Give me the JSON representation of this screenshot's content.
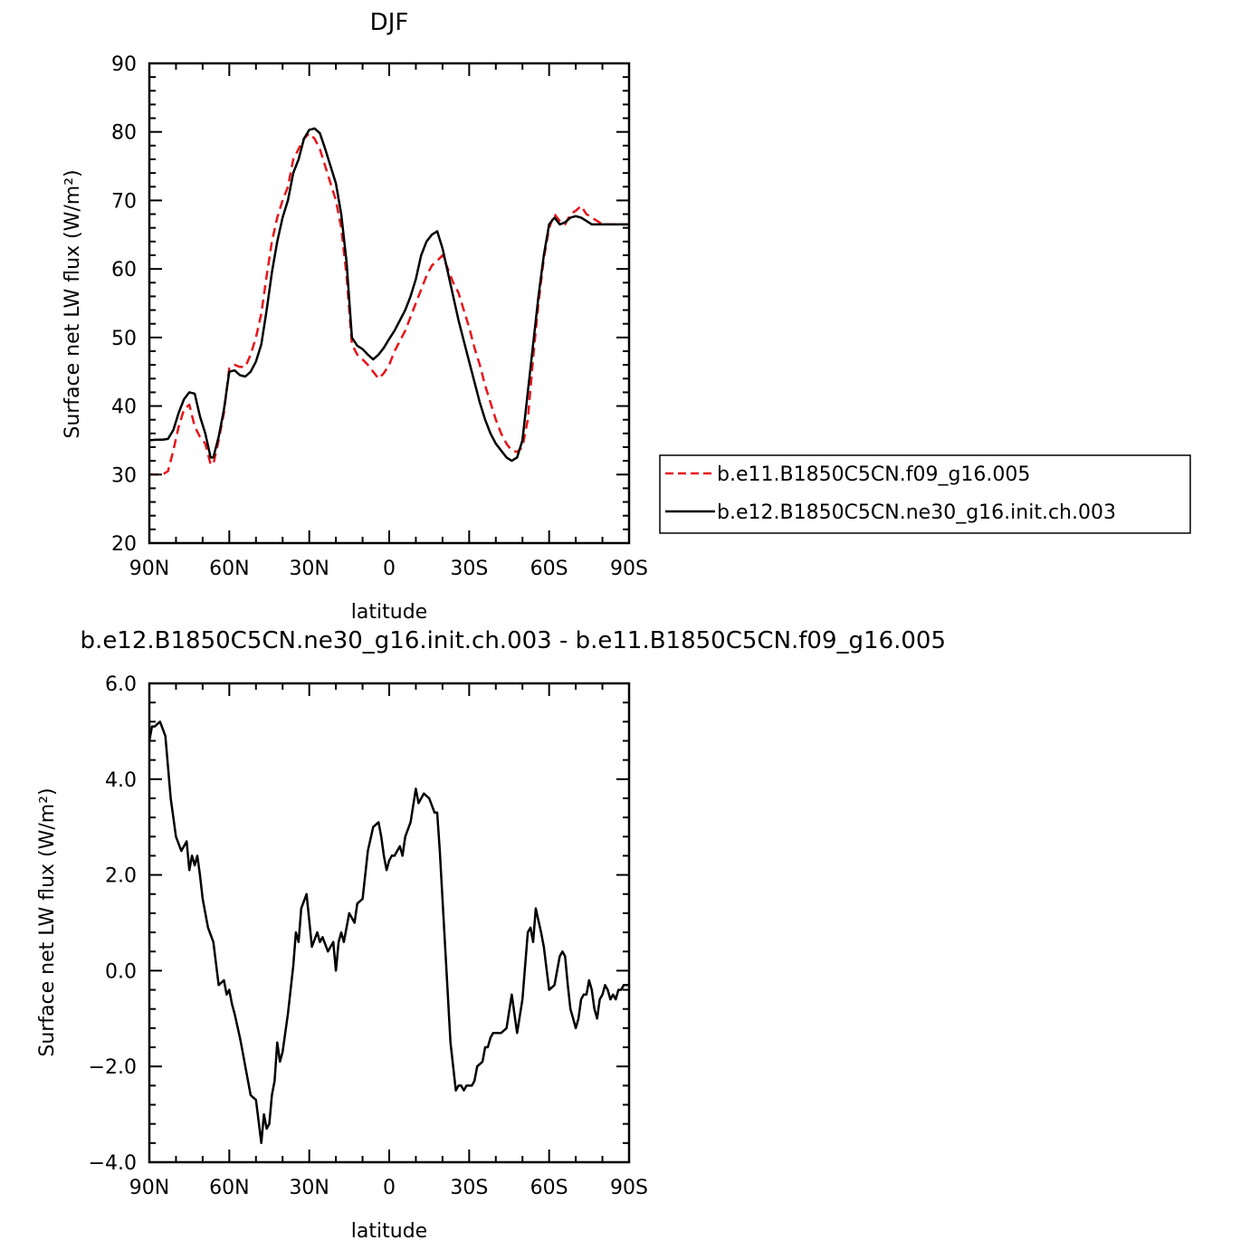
{
  "chart_data": [
    {
      "type": "line",
      "title": "DJF",
      "xlabel": "latitude",
      "ylabel": "Surface net LW flux (W/m²)",
      "xlim": [
        90,
        -90
      ],
      "ylim": [
        20,
        90
      ],
      "xticks": [
        90,
        60,
        30,
        0,
        -30,
        -60,
        -90
      ],
      "xtick_labels": [
        "90N",
        "60N",
        "30N",
        "0",
        "30S",
        "60S",
        "90S"
      ],
      "yticks": [
        20,
        30,
        40,
        50,
        60,
        70,
        80,
        90
      ],
      "ytick_labels": [
        "20",
        "30",
        "40",
        "50",
        "60",
        "70",
        "80",
        "90"
      ],
      "legend": "right",
      "series": [
        {
          "name": "b.e11.B1850C5CN.f09_g16.005",
          "color": "#e8141a",
          "dash": "dashed",
          "x": [
            90,
            87,
            85,
            83,
            81,
            79,
            77,
            75,
            73,
            71,
            69,
            67,
            66,
            64,
            62,
            60,
            58,
            56,
            54,
            52,
            50,
            48,
            46,
            44,
            42,
            40,
            38,
            36,
            34,
            32,
            30,
            28,
            26,
            24,
            22,
            20,
            18,
            16,
            14,
            12,
            10,
            8,
            6,
            4,
            2,
            0,
            -2,
            -4,
            -6,
            -8,
            -10,
            -12,
            -14,
            -16,
            -18,
            -20,
            -22,
            -24,
            -26,
            -28,
            -30,
            -32,
            -34,
            -36,
            -38,
            -40,
            -42,
            -44,
            -46,
            -48,
            -50,
            -52,
            -54,
            -56,
            -58,
            -60,
            -62,
            -64,
            -66,
            -68,
            -70,
            -72,
            -74,
            -76,
            -78,
            -80,
            -82,
            -84,
            -86,
            -88,
            -90
          ],
          "y": [
            30.0,
            30.0,
            30.0,
            30.5,
            33.5,
            37.0,
            39.5,
            40.2,
            37.0,
            35.5,
            34.5,
            31.5,
            31.5,
            35.0,
            39.0,
            45.5,
            46.0,
            45.7,
            45.7,
            47.5,
            50.0,
            53.5,
            59.0,
            64.0,
            67.5,
            70.0,
            72.0,
            76.0,
            77.5,
            79.0,
            79.8,
            79.0,
            77.5,
            75.0,
            72.5,
            70.0,
            66.0,
            59.0,
            49.0,
            47.5,
            46.8,
            46.0,
            45.0,
            44.0,
            44.8,
            46.0,
            48.0,
            49.5,
            51.0,
            53.0,
            55.0,
            57.0,
            59.0,
            60.5,
            61.2,
            62.0,
            60.0,
            58.0,
            56.5,
            54.0,
            51.5,
            48.5,
            46.0,
            43.0,
            40.5,
            38.0,
            36.0,
            34.5,
            33.5,
            33.3,
            34.0,
            38.0,
            47.0,
            55.0,
            61.5,
            66.0,
            68.0,
            67.0,
            66.5,
            68.0,
            68.5,
            69.2,
            68.0,
            67.5,
            67.0,
            66.5,
            66.5,
            66.5,
            66.5,
            66.5,
            66.5
          ]
        },
        {
          "name": "b.e12.B1850C5CN.ne30_g16.init.ch.003",
          "color": "#000000",
          "dash": "solid",
          "x": [
            90,
            87,
            85,
            83,
            81,
            79,
            77,
            75,
            73,
            71,
            69,
            67,
            66,
            64,
            62,
            60,
            58,
            56,
            54,
            52,
            50,
            48,
            46,
            44,
            42,
            40,
            38,
            36,
            34,
            32,
            30,
            28,
            26,
            24,
            22,
            20,
            18,
            16,
            14,
            12,
            10,
            8,
            6,
            4,
            2,
            0,
            -2,
            -4,
            -6,
            -8,
            -10,
            -12,
            -14,
            -16,
            -18,
            -20,
            -22,
            -24,
            -26,
            -28,
            -30,
            -32,
            -34,
            -36,
            -38,
            -40,
            -42,
            -44,
            -46,
            -48,
            -50,
            -52,
            -54,
            -56,
            -58,
            -60,
            -62,
            -64,
            -66,
            -68,
            -70,
            -72,
            -74,
            -76,
            -78,
            -80,
            -82,
            -84,
            -86,
            -88,
            -90
          ],
          "y": [
            35.0,
            35.1,
            35.1,
            35.2,
            36.5,
            39.0,
            41.0,
            42.0,
            41.8,
            38.5,
            36.0,
            32.5,
            32.5,
            35.5,
            39.5,
            45.0,
            45.2,
            44.5,
            44.3,
            45.0,
            46.5,
            49.0,
            54.0,
            59.5,
            64.0,
            67.5,
            70.0,
            74.0,
            76.0,
            79.0,
            80.3,
            80.5,
            79.8,
            77.5,
            75.0,
            72.5,
            68.0,
            61.0,
            50.0,
            48.8,
            48.3,
            47.5,
            46.8,
            47.5,
            48.5,
            49.8,
            51.0,
            52.5,
            54.0,
            56.0,
            58.5,
            62.0,
            64.0,
            65.0,
            65.5,
            63.0,
            59.5,
            56.0,
            52.5,
            49.5,
            46.5,
            43.5,
            40.5,
            38.0,
            36.0,
            34.5,
            33.5,
            32.5,
            32.0,
            32.5,
            35.0,
            42.0,
            49.0,
            56.0,
            62.0,
            66.5,
            67.5,
            66.5,
            66.8,
            67.5,
            67.7,
            67.5,
            67.0,
            66.5,
            66.5,
            66.5,
            66.5,
            66.5,
            66.5,
            66.5,
            66.5
          ]
        }
      ]
    },
    {
      "type": "line",
      "title": "b.e12.B1850C5CN.ne30_g16.init.ch.003 - b.e11.B1850C5CN.f09_g16.005",
      "xlabel": "latitude",
      "ylabel": "Surface net LW flux (W/m²)",
      "xlim": [
        90,
        -90
      ],
      "ylim": [
        -4.0,
        6.0
      ],
      "xticks": [
        90,
        60,
        30,
        0,
        -30,
        -60,
        -90
      ],
      "xtick_labels": [
        "90N",
        "60N",
        "30N",
        "0",
        "30S",
        "60S",
        "90S"
      ],
      "yticks": [
        -4,
        -2,
        0,
        2,
        4,
        6
      ],
      "ytick_labels": [
        "−4.0",
        "−2.0",
        "0.0",
        "2.0",
        "4.0",
        "6.0"
      ],
      "series": [
        {
          "color": "#000000",
          "dash": "solid",
          "x": [
            90,
            89,
            88,
            86,
            84,
            82,
            80,
            78,
            76,
            75,
            74,
            73,
            72,
            71,
            70,
            68,
            66,
            64,
            62,
            61,
            60,
            59,
            58,
            56,
            55,
            54,
            52,
            50,
            48,
            47,
            46,
            45,
            44,
            43,
            42,
            41,
            40,
            38,
            36,
            35,
            34,
            33,
            31,
            29,
            27,
            26,
            25,
            23,
            21,
            20,
            19,
            18,
            17,
            15,
            13,
            12,
            10,
            8,
            6,
            4,
            3,
            2,
            1,
            0,
            -1,
            -2,
            -3,
            -4,
            -5,
            -6,
            -8,
            -10,
            -11,
            -13,
            -15,
            -17,
            -18,
            -19,
            -21,
            -23,
            -25,
            -26,
            -27,
            -28,
            -29,
            -30,
            -31,
            -32,
            -33,
            -35,
            -36,
            -37,
            -38,
            -39,
            -40,
            -42,
            -44,
            -46,
            -48,
            -50,
            -52,
            -53,
            -54,
            -55,
            -57,
            -58,
            -60,
            -62,
            -64,
            -65,
            -66,
            -67,
            -68,
            -69,
            -70,
            -71,
            -72,
            -73,
            -74,
            -75,
            -76,
            -77,
            -78,
            -79,
            -80,
            -81,
            -82,
            -83,
            -84,
            -85,
            -86,
            -87,
            -88,
            -89,
            -90
          ],
          "y": [
            4.8,
            5.1,
            5.1,
            5.2,
            4.9,
            3.6,
            2.8,
            2.5,
            2.7,
            2.1,
            2.4,
            2.2,
            2.4,
            2.0,
            1.5,
            0.9,
            0.6,
            -0.3,
            -0.2,
            -0.5,
            -0.4,
            -0.7,
            -0.9,
            -1.4,
            -1.7,
            -2.0,
            -2.6,
            -2.7,
            -3.6,
            -3.0,
            -3.3,
            -3.2,
            -2.6,
            -2.3,
            -1.5,
            -1.9,
            -1.7,
            -0.9,
            0.1,
            0.8,
            0.6,
            1.3,
            1.6,
            0.5,
            0.8,
            0.6,
            0.7,
            0.4,
            0.6,
            0.0,
            0.6,
            0.8,
            0.6,
            1.2,
            1.0,
            1.4,
            1.5,
            2.5,
            3.0,
            3.1,
            2.8,
            2.4,
            2.1,
            2.3,
            2.4,
            2.4,
            2.5,
            2.6,
            2.4,
            2.8,
            3.1,
            3.8,
            3.5,
            3.7,
            3.6,
            3.3,
            3.3,
            2.5,
            0.5,
            -1.5,
            -2.5,
            -2.4,
            -2.4,
            -2.5,
            -2.4,
            -2.4,
            -2.4,
            -2.3,
            -2.0,
            -1.9,
            -1.6,
            -1.6,
            -1.4,
            -1.3,
            -1.3,
            -1.3,
            -1.2,
            -0.5,
            -1.3,
            -0.6,
            0.8,
            0.9,
            0.6,
            1.3,
            0.8,
            0.5,
            -0.4,
            -0.3,
            0.3,
            0.4,
            0.3,
            -0.3,
            -0.8,
            -1.0,
            -1.2,
            -1.0,
            -0.6,
            -0.5,
            -0.5,
            -0.2,
            -0.4,
            -0.8,
            -1.0,
            -0.6,
            -0.5,
            -0.3,
            -0.4,
            -0.6,
            -0.5,
            -0.6,
            -0.4,
            -0.4,
            -0.3,
            -0.3,
            -0.3
          ]
        }
      ]
    }
  ]
}
